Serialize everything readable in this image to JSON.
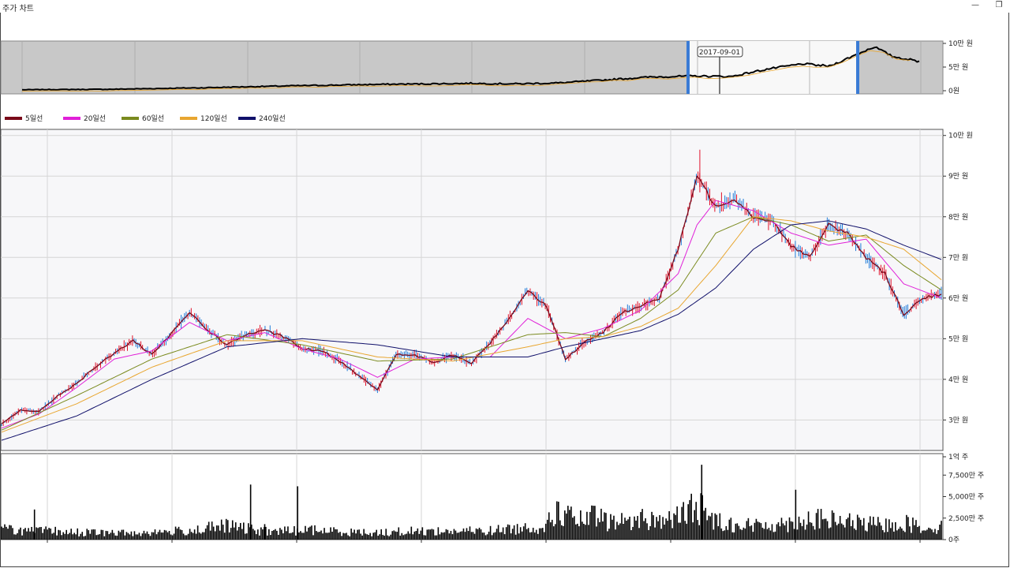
{
  "window": {
    "title": "주가 차트",
    "minimize_glyph": "—",
    "restore_glyph": "❐"
  },
  "navigator": {
    "tooltip_date": "2017-09-01",
    "y_ticks": [
      "10만 원",
      "5만 원",
      "0원"
    ],
    "selection_color": "#3a7bd5"
  },
  "legend": [
    {
      "name": "5일선",
      "color": "#7a0a1a"
    },
    {
      "name": "20일선",
      "color": "#e020d8"
    },
    {
      "name": "60일선",
      "color": "#7a8a1e"
    },
    {
      "name": "120일선",
      "color": "#e8a630"
    },
    {
      "name": "240일선",
      "color": "#10106a"
    }
  ],
  "chart_data": {
    "type": "line",
    "price_axis": {
      "ticks": [
        "10만 원",
        "9만 원",
        "8만 원",
        "7만 원",
        "6만 원",
        "5만 원",
        "4만 원",
        "3만 원"
      ],
      "ylim": [
        22500,
        101500
      ],
      "unit": "원"
    },
    "volume_axis": {
      "ticks": [
        "1억 주",
        "7,500만 주",
        "5,000만 주",
        "2,500만 주",
        "0주"
      ],
      "ylim": [
        0,
        100000000
      ],
      "unit": "주"
    },
    "series": [
      {
        "name": "5일선",
        "x": [
          0,
          2,
          4,
          6,
          8,
          10,
          12,
          14,
          16,
          18,
          20,
          22,
          24,
          26,
          28,
          30,
          32,
          34,
          36,
          38,
          40,
          42,
          44,
          46,
          48,
          50,
          52,
          54,
          56,
          58,
          60,
          62,
          64,
          66,
          68,
          70,
          72,
          74,
          76,
          78,
          80,
          82,
          84,
          86,
          88,
          90,
          92,
          94,
          96,
          98,
          100
        ],
        "values": [
          29000,
          32500,
          32000,
          36000,
          39000,
          43000,
          46500,
          49500,
          46000,
          51000,
          56500,
          52000,
          48500,
          51000,
          52000,
          50500,
          47500,
          47000,
          44500,
          41000,
          37500,
          46000,
          46000,
          44000,
          46000,
          44000,
          49000,
          55000,
          62000,
          58000,
          45000,
          49000,
          51500,
          56500,
          58000,
          60000,
          72000,
          90000,
          82500,
          84500,
          80000,
          79000,
          73000,
          70000,
          78000,
          76000,
          70000,
          66000,
          56000,
          60000,
          61000
        ]
      },
      {
        "name": "20일선",
        "x": [
          0,
          4,
          8,
          12,
          16,
          20,
          24,
          28,
          32,
          36,
          40,
          44,
          48,
          52,
          56,
          60,
          64,
          68,
          72,
          74,
          76,
          80,
          84,
          88,
          92,
          96,
          100
        ],
        "values": [
          28000,
          31500,
          38000,
          45000,
          47000,
          54000,
          49500,
          51500,
          47500,
          45000,
          40500,
          45000,
          45500,
          45500,
          55000,
          50000,
          52500,
          57000,
          66000,
          78000,
          84000,
          81500,
          76000,
          73000,
          74500,
          63500,
          60000
        ]
      },
      {
        "name": "60일선",
        "x": [
          0,
          8,
          16,
          24,
          32,
          40,
          48,
          56,
          60,
          64,
          68,
          72,
          76,
          80,
          84,
          88,
          92,
          96,
          100
        ],
        "values": [
          27500,
          36000,
          45000,
          51000,
          48500,
          44500,
          45000,
          51000,
          51500,
          50500,
          55000,
          62000,
          76000,
          80000,
          78000,
          74000,
          75500,
          68000,
          62000
        ]
      },
      {
        "name": "120일선",
        "x": [
          0,
          8,
          16,
          24,
          32,
          40,
          48,
          56,
          60,
          64,
          68,
          72,
          76,
          80,
          84,
          88,
          92,
          96,
          100
        ],
        "values": [
          27000,
          34000,
          43000,
          49500,
          49500,
          45500,
          44500,
          48000,
          50000,
          50500,
          53000,
          57500,
          68000,
          80000,
          79000,
          76500,
          75000,
          72000,
          64500
        ]
      },
      {
        "name": "240일선",
        "x": [
          0,
          8,
          16,
          24,
          32,
          40,
          48,
          56,
          60,
          64,
          68,
          72,
          76,
          80,
          84,
          88,
          92,
          96,
          100
        ],
        "values": [
          25000,
          31000,
          40000,
          48000,
          50000,
          48500,
          45500,
          45500,
          48000,
          50000,
          52000,
          56000,
          62500,
          72000,
          78000,
          79000,
          77000,
          73000,
          69500
        ]
      }
    ],
    "volume": {
      "x": [
        1,
        3,
        5,
        7,
        10,
        14,
        20,
        24,
        26,
        28,
        30,
        33,
        37,
        40,
        44,
        48,
        52,
        56,
        58,
        59,
        60,
        61,
        62,
        63,
        64,
        65,
        66,
        68,
        70,
        72,
        73,
        74,
        75,
        76,
        78,
        80,
        82,
        84,
        86,
        88,
        90,
        92,
        94,
        96,
        98
      ],
      "values": [
        15000000,
        12000000,
        12500000,
        11000000,
        10000000,
        9500000,
        13000000,
        20000000,
        16000000,
        12000000,
        12500000,
        14000000,
        11000000,
        10000000,
        12500000,
        12000000,
        13000000,
        17500000,
        20000000,
        42000000,
        36000000,
        30000000,
        26000000,
        34000000,
        28000000,
        25000000,
        26000000,
        30000000,
        28000000,
        32000000,
        40000000,
        52000000,
        35000000,
        28000000,
        22000000,
        20000000,
        22000000,
        24000000,
        30000000,
        28000000,
        26000000,
        22000000,
        21000000,
        24000000,
        18000000
      ],
      "spikes_x": [
        3.5,
        26.5,
        28,
        31.5,
        74.5,
        84.5
      ],
      "spikes_values": [
        35000000,
        64000000,
        18000000,
        62000000,
        87000000,
        58000000
      ]
    }
  }
}
